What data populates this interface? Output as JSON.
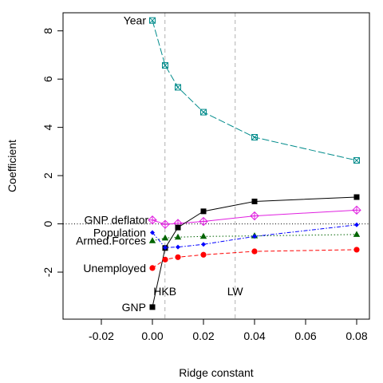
{
  "chart_data": {
    "type": "line",
    "title": "",
    "xlabel": "Ridge constant",
    "ylabel": "Coefficient",
    "xlim": [
      -0.035,
      0.085
    ],
    "ylim": [
      -3.95,
      8.75
    ],
    "xticks": [
      -0.02,
      0.0,
      0.02,
      0.04,
      0.06,
      0.08
    ],
    "xtick_labels": [
      "-0.02",
      "0.00",
      "0.02",
      "0.04",
      "0.06",
      "0.08"
    ],
    "yticks": [
      -2,
      0,
      2,
      4,
      6,
      8
    ],
    "ytick_labels": [
      "-2",
      "0",
      "2",
      "4",
      "6",
      "8"
    ],
    "x": [
      0.0,
      0.005,
      0.01,
      0.02,
      0.04,
      0.08
    ],
    "grid": false,
    "zero_line": true,
    "reference_lines": [
      {
        "label": "HKB",
        "x": 0.0049
      },
      {
        "label": "LW",
        "x": 0.0324
      }
    ],
    "series": [
      {
        "name": "GNP deflator",
        "values": [
          0.16,
          -0.02,
          0.02,
          0.1,
          0.33,
          0.57
        ],
        "color": "#e020e0",
        "marker": "diamond-plus",
        "dash": "solid"
      },
      {
        "name": "GNP",
        "values": [
          -3.45,
          -1.0,
          -0.15,
          0.52,
          0.93,
          1.11
        ],
        "color": "#000000",
        "marker": "square",
        "dash": "solid"
      },
      {
        "name": "Unemployed",
        "values": [
          -1.83,
          -1.48,
          -1.38,
          -1.28,
          -1.14,
          -1.07
        ],
        "color": "#ff0000",
        "marker": "circle",
        "dash": "dashed"
      },
      {
        "name": "Armed.Forces",
        "values": [
          -0.7,
          -0.59,
          -0.55,
          -0.52,
          -0.5,
          -0.44
        ],
        "color": "#006400",
        "marker": "triangle",
        "dash": "dotted"
      },
      {
        "name": "Population",
        "values": [
          -0.36,
          -0.98,
          -0.96,
          -0.85,
          -0.52,
          -0.04
        ],
        "color": "#0000ff",
        "marker": "small-diamond",
        "dash": "dashdot"
      },
      {
        "name": "Year",
        "values": [
          8.43,
          6.57,
          5.66,
          4.63,
          3.59,
          2.63
        ],
        "color": "#008b8b",
        "marker": "square-x",
        "dash": "longdash"
      }
    ],
    "labels": [
      {
        "text": "Year",
        "x": -0.0025,
        "y": 8.43,
        "anchor": "end"
      },
      {
        "text": "GNP deflator",
        "x": -0.0015,
        "y": 0.16,
        "anchor": "end"
      },
      {
        "text": "Population",
        "x": -0.0025,
        "y": -0.36,
        "anchor": "end"
      },
      {
        "text": "Armed.Forces",
        "x": -0.0025,
        "y": -0.7,
        "anchor": "end"
      },
      {
        "text": "Unemployed",
        "x": -0.0025,
        "y": -1.83,
        "anchor": "end"
      },
      {
        "text": "GNP",
        "x": -0.0025,
        "y": -3.45,
        "anchor": "end"
      }
    ]
  }
}
